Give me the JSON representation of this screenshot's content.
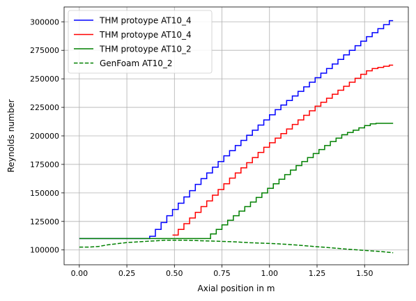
{
  "chart_data": {
    "type": "line",
    "title": "",
    "xlabel": "Axial position in m",
    "ylabel": "Reynolds number",
    "xlim": [
      -0.08,
      1.73
    ],
    "ylim": [
      87000,
      313000
    ],
    "xticks": [
      0.0,
      0.25,
      0.5,
      0.75,
      1.0,
      1.25,
      1.5
    ],
    "xtick_labels": [
      "0.00",
      "0.25",
      "0.50",
      "0.75",
      "1.00",
      "1.25",
      "1.50"
    ],
    "yticks": [
      100000,
      125000,
      150000,
      175000,
      200000,
      225000,
      250000,
      275000,
      300000
    ],
    "ytick_labels": [
      "100000",
      "125000",
      "150000",
      "175000",
      "200000",
      "225000",
      "250000",
      "275000",
      "300000"
    ],
    "grid": true,
    "legend_position": "top-left",
    "series": [
      {
        "name": "THM protoype AT10_4",
        "color": "#0000ff",
        "style": "steps-solid",
        "x": [
          0,
          0.37,
          0.37,
          0.4,
          0.43,
          0.46,
          0.49,
          0.52,
          0.55,
          0.58,
          0.61,
          0.64,
          0.67,
          0.7,
          0.73,
          0.76,
          0.79,
          0.82,
          0.85,
          0.88,
          0.91,
          0.94,
          0.97,
          1.0,
          1.03,
          1.06,
          1.09,
          1.12,
          1.15,
          1.18,
          1.21,
          1.24,
          1.27,
          1.3,
          1.33,
          1.36,
          1.39,
          1.42,
          1.45,
          1.48,
          1.51,
          1.54,
          1.57,
          1.6,
          1.63,
          1.65
        ],
        "y": [
          110000,
          110000,
          112000,
          118000,
          124000,
          130000,
          135500,
          141000,
          146500,
          152000,
          157500,
          162500,
          167500,
          172500,
          177500,
          182500,
          187000,
          191500,
          196000,
          200500,
          205000,
          209500,
          214000,
          218500,
          223000,
          227000,
          231000,
          235000,
          239000,
          243000,
          247000,
          251000,
          255000,
          259000,
          263000,
          267000,
          271000,
          275000,
          279000,
          283000,
          287000,
          290500,
          294000,
          297500,
          301000,
          301000
        ]
      },
      {
        "name": "THM protoype AT10_4",
        "color": "#ff0000",
        "style": "steps-solid",
        "x": [
          0.49,
          0.52,
          0.55,
          0.58,
          0.61,
          0.64,
          0.67,
          0.7,
          0.73,
          0.76,
          0.79,
          0.82,
          0.85,
          0.88,
          0.91,
          0.94,
          0.97,
          1.0,
          1.03,
          1.06,
          1.09,
          1.12,
          1.15,
          1.18,
          1.21,
          1.24,
          1.27,
          1.3,
          1.33,
          1.36,
          1.39,
          1.42,
          1.45,
          1.48,
          1.51,
          1.54,
          1.57,
          1.6,
          1.63,
          1.65
        ],
        "y": [
          113000,
          118000,
          123000,
          128000,
          133000,
          138000,
          143000,
          148000,
          153000,
          158000,
          163000,
          167500,
          172000,
          176500,
          181000,
          185500,
          190000,
          194000,
          198000,
          202000,
          206000,
          210000,
          214000,
          218000,
          222000,
          226000,
          229500,
          233000,
          236500,
          240000,
          243500,
          247000,
          250500,
          254000,
          257000,
          259000,
          260000,
          261000,
          262000,
          262000
        ]
      },
      {
        "name": "THM protoype AT10_2",
        "color": "#008000",
        "style": "steps-solid",
        "x": [
          0,
          0.69,
          0.69,
          0.72,
          0.75,
          0.78,
          0.81,
          0.84,
          0.87,
          0.9,
          0.93,
          0.96,
          0.99,
          1.02,
          1.05,
          1.08,
          1.11,
          1.14,
          1.17,
          1.2,
          1.23,
          1.26,
          1.29,
          1.32,
          1.35,
          1.38,
          1.41,
          1.44,
          1.47,
          1.5,
          1.53,
          1.56,
          1.59,
          1.62,
          1.65
        ],
        "y": [
          110000,
          110000,
          114000,
          118000,
          122000,
          126000,
          130000,
          134000,
          138000,
          142000,
          146000,
          150000,
          154000,
          158000,
          162000,
          166000,
          170000,
          174000,
          177500,
          181000,
          184500,
          188000,
          191500,
          195000,
          198000,
          201000,
          203000,
          205000,
          207000,
          209000,
          210500,
          211000,
          211000,
          211000,
          211000
        ]
      },
      {
        "name": "GenFoam AT10_2",
        "color": "#008000",
        "style": "dashed",
        "x": [
          0,
          0.05,
          0.1,
          0.15,
          0.2,
          0.25,
          0.3,
          0.35,
          0.4,
          0.45,
          0.5,
          0.55,
          0.6,
          0.65,
          0.7,
          0.75,
          0.8,
          0.85,
          0.9,
          0.95,
          1.0,
          1.05,
          1.1,
          1.15,
          1.2,
          1.25,
          1.3,
          1.35,
          1.4,
          1.45,
          1.5,
          1.55,
          1.6,
          1.65
        ],
        "y": [
          102500,
          102500,
          103000,
          104500,
          105500,
          106500,
          107000,
          107500,
          108000,
          108500,
          108500,
          108500,
          108300,
          108000,
          107800,
          107500,
          107200,
          106800,
          106300,
          106000,
          105700,
          105300,
          104800,
          104200,
          103500,
          102800,
          102200,
          101500,
          100800,
          100200,
          99600,
          99000,
          98400,
          97500
        ]
      }
    ]
  }
}
